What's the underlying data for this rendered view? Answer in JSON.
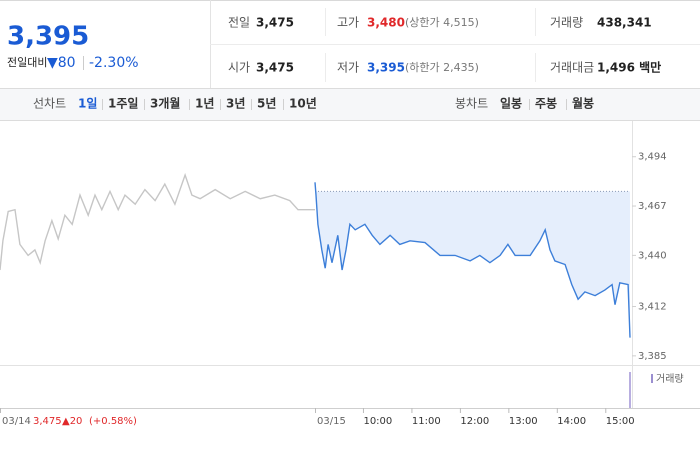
{
  "quote": {
    "price": "3,395",
    "change_label": "전일대비",
    "change": "▼80",
    "change_rate": "-2.30%"
  },
  "stats": [
    {
      "label": "전일",
      "value": "3,475"
    },
    {
      "label": "고가",
      "value": "3,480",
      "note": "(상한가 4,515)"
    },
    {
      "label": "거래량",
      "value": "438,341"
    },
    {
      "label": "시가",
      "value": "3,475"
    },
    {
      "label": "저가",
      "value": "3,395",
      "note": "(하한가 2,435)"
    },
    {
      "label": "거래대금",
      "value": "1,496 백만"
    }
  ],
  "line_tabs": {
    "label": "선차트",
    "items": [
      "1일",
      "1주일",
      "3개월",
      "1년",
      "3년",
      "5년",
      "10년"
    ],
    "selected": 0
  },
  "candle_tabs": {
    "label": "봉차트",
    "items": [
      "일봉",
      "주봉",
      "월봉"
    ]
  },
  "chart_data": {
    "type": "line",
    "xlim": [
      9,
      15.5
    ],
    "xticks": [
      {
        "value": 10,
        "label": "10:00"
      },
      {
        "value": 11,
        "label": "11:00"
      },
      {
        "value": 12,
        "label": "12:00"
      },
      {
        "value": 13,
        "label": "13:00"
      },
      {
        "value": 14,
        "label": "14:00"
      },
      {
        "value": 15,
        "label": "15:00"
      }
    ],
    "ylim": [
      3380,
      3513
    ],
    "yticks": [
      {
        "value": 3385,
        "label": "3,385"
      },
      {
        "value": 3412,
        "label": "3,412"
      },
      {
        "value": 3440,
        "label": "3,440"
      },
      {
        "value": 3467,
        "label": "3,467"
      },
      {
        "value": 3494,
        "label": "3,494"
      }
    ],
    "grid": false,
    "reference_value": 3475,
    "volume_label": "거래량",
    "prev_summary": {
      "close": "3,475",
      "change": "▲20",
      "rate": "(+0.58%)"
    },
    "series": [
      {
        "name": "03/14",
        "color": "#c6c6c6",
        "x": [
          9.0,
          9.06,
          9.17,
          9.31,
          9.41,
          9.58,
          9.72,
          9.83,
          9.93,
          10.07,
          10.2,
          10.34,
          10.49,
          10.65,
          10.82,
          10.96,
          11.1,
          11.27,
          11.44,
          11.58,
          11.79,
          11.99,
          12.2,
          12.4,
          12.61,
          12.82,
          12.96,
          13.13,
          13.44,
          13.75,
          14.06,
          14.37,
          14.67,
          14.98,
          15.15,
          15.5
        ],
        "values": [
          3432,
          3448,
          3464,
          3465,
          3446,
          3440,
          3443,
          3436,
          3448,
          3459,
          3449,
          3462,
          3457,
          3473,
          3462,
          3473,
          3465,
          3475,
          3465,
          3473,
          3468,
          3476,
          3470,
          3479,
          3468,
          3484,
          3473,
          3471,
          3476,
          3471,
          3475,
          3471,
          3473,
          3470,
          3465,
          3465
        ]
      },
      {
        "name": "03/15",
        "color": "#3d7fd9",
        "x": [
          9.0,
          9.02,
          9.06,
          9.14,
          9.21,
          9.27,
          9.35,
          9.47,
          9.56,
          9.64,
          9.72,
          9.83,
          10.03,
          10.18,
          10.34,
          10.55,
          10.75,
          10.96,
          11.27,
          11.58,
          11.89,
          12.2,
          12.4,
          12.61,
          12.82,
          12.98,
          13.13,
          13.44,
          13.64,
          13.75,
          13.85,
          13.95,
          14.16,
          14.3,
          14.43,
          14.57,
          14.78,
          14.98,
          15.13,
          15.19,
          15.29,
          15.46,
          15.5
        ],
        "values": [
          3480,
          3473,
          3457,
          3443,
          3433,
          3446,
          3436,
          3451,
          3432,
          3443,
          3457,
          3454,
          3457,
          3451,
          3446,
          3451,
          3446,
          3448,
          3447,
          3440,
          3440,
          3437,
          3440,
          3436,
          3440,
          3446,
          3440,
          3440,
          3448,
          3454,
          3443,
          3437,
          3435,
          3424,
          3416,
          3420,
          3418,
          3421,
          3424,
          3413,
          3425,
          3424,
          3395
        ]
      }
    ]
  }
}
